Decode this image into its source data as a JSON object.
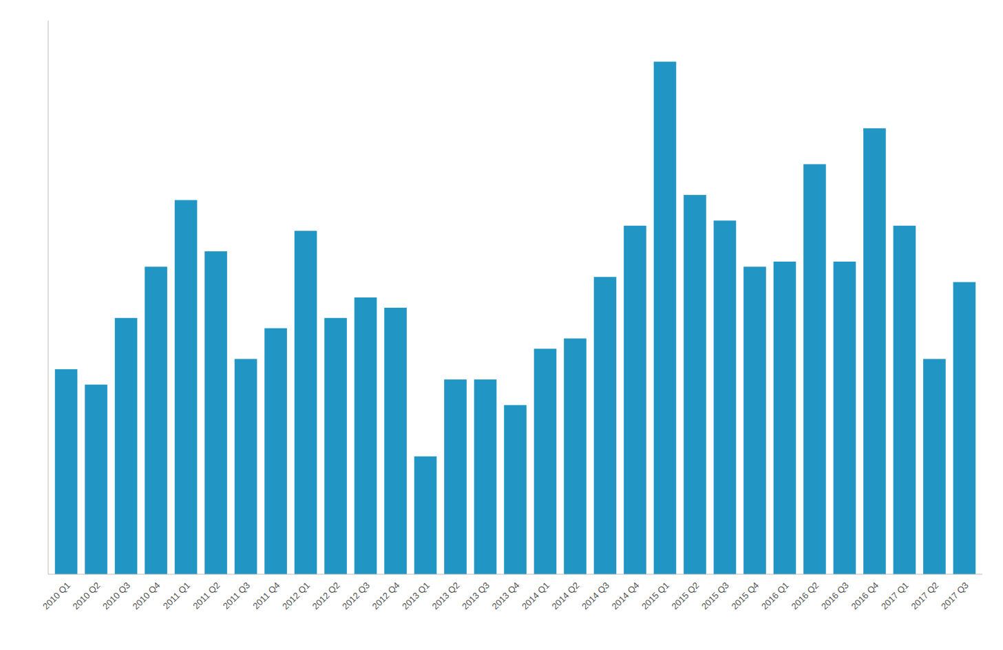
{
  "chart_data": {
    "type": "bar",
    "categories": [
      "2010 Q1",
      "2010 Q2",
      "2010 Q3",
      "2010 Q4",
      "2011 Q1",
      "2011 Q2",
      "2011 Q3",
      "2011 Q4",
      "2012 Q1",
      "2012 Q2",
      "2012 Q3",
      "2012 Q4",
      "2013 Q1",
      "2013 Q2",
      "2013 Q3",
      "2013 Q4",
      "2014 Q1",
      "2014 Q2",
      "2014 Q3",
      "2014 Q4",
      "2015 Q1",
      "2015 Q2",
      "2015 Q3",
      "2015 Q4",
      "2016 Q1",
      "2016 Q2",
      "2016 Q3",
      "2016 Q4",
      "2017 Q1",
      "2017 Q2",
      "2017 Q3"
    ],
    "values": [
      40,
      37,
      50,
      60,
      73,
      63,
      42,
      48,
      67,
      50,
      54,
      52,
      23,
      38,
      38,
      33,
      44,
      46,
      58,
      68,
      100,
      74,
      69,
      60,
      61,
      80,
      61,
      87,
      68,
      42,
      57
    ],
    "color": "#2196C4",
    "ylim": [
      0,
      108
    ],
    "grid": false,
    "tick_labels": "x"
  }
}
